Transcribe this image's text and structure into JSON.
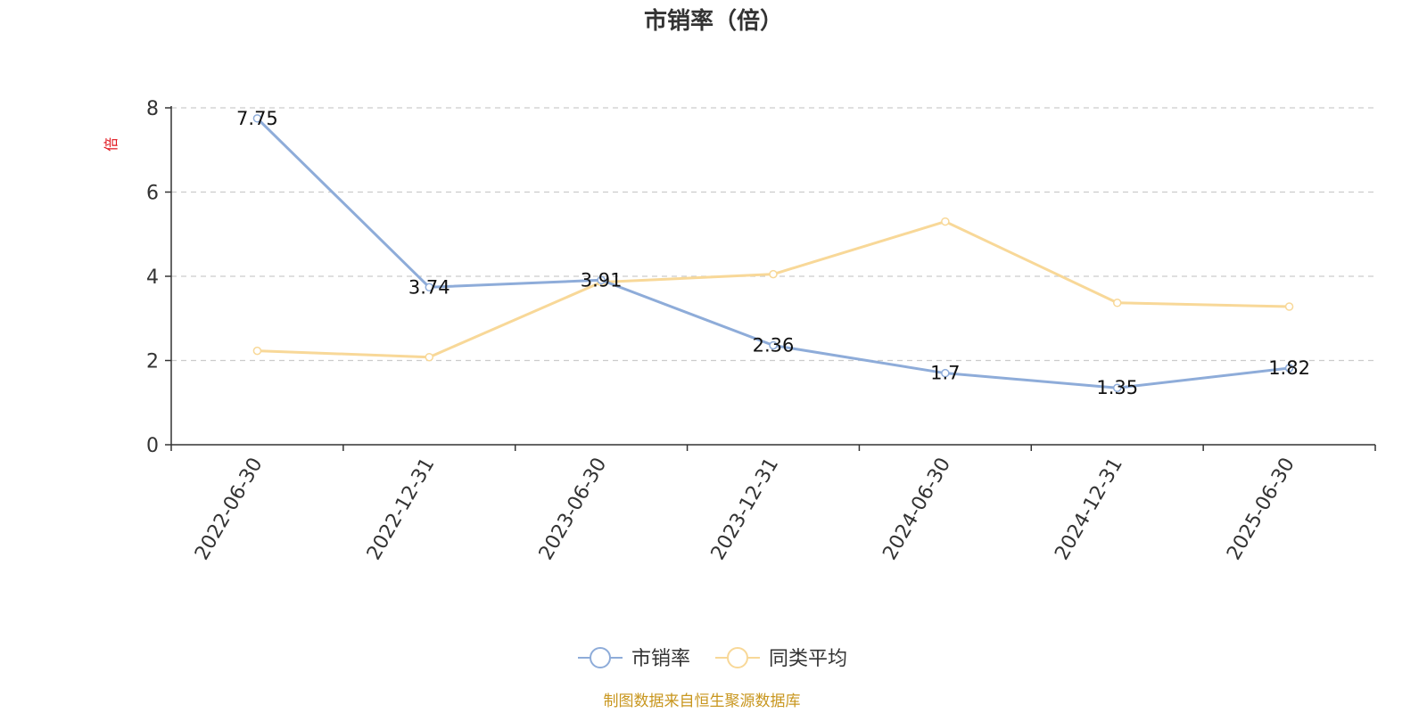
{
  "chart_data": {
    "type": "line",
    "title": "市销率（倍）",
    "ylabel": "倍",
    "xlabel": "",
    "categories": [
      "2022-06-30",
      "2022-12-31",
      "2023-06-30",
      "2023-12-31",
      "2024-06-30",
      "2024-12-31",
      "2025-06-30"
    ],
    "ylim": [
      0,
      8
    ],
    "yticks": [
      0,
      2,
      4,
      6,
      8
    ],
    "grid": true,
    "legend_position": "bottom",
    "series": [
      {
        "name": "市销率",
        "color": "#8eacd9",
        "values": [
          7.75,
          3.74,
          3.91,
          2.36,
          1.7,
          1.35,
          1.82
        ],
        "labels": [
          "7.75",
          "3.74",
          "3.91",
          "2.36",
          "1.7",
          "1.35",
          "1.82"
        ],
        "show_labels": true
      },
      {
        "name": "同类平均",
        "color": "#f8d898",
        "values": [
          2.23,
          2.08,
          3.86,
          4.05,
          5.3,
          3.37,
          3.28
        ],
        "show_labels": false
      }
    ]
  },
  "source_note": "制图数据来自恒生聚源数据库"
}
